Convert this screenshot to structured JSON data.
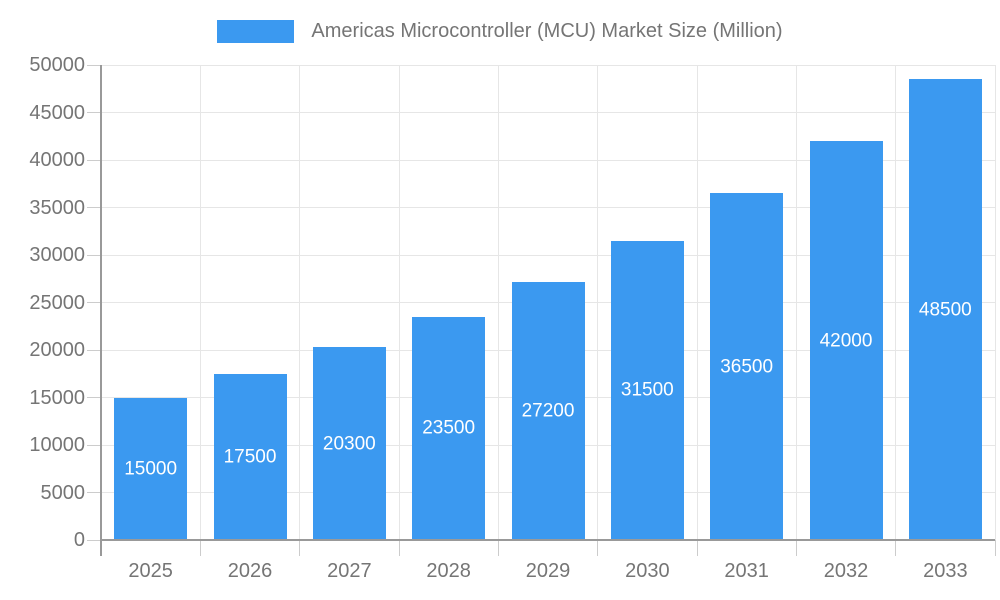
{
  "chart_data": {
    "type": "bar",
    "title": "Americas Microcontroller (MCU) Market Size (Million)",
    "legend_label": "Americas Microcontroller (MCU) Market Size (Million)",
    "legend_position": "top-center",
    "categories": [
      "2025",
      "2026",
      "2027",
      "2028",
      "2029",
      "2030",
      "2031",
      "2032",
      "2033"
    ],
    "values": [
      15000,
      17500,
      20300,
      23500,
      27200,
      31500,
      36500,
      42000,
      48500
    ],
    "value_labels": [
      "15000",
      "17500",
      "20300",
      "23500",
      "27200",
      "31500",
      "36500",
      "42000",
      "48500"
    ],
    "xlabel": "",
    "ylabel": "",
    "ylim": [
      0,
      50000
    ],
    "yticks": [
      0,
      5000,
      10000,
      15000,
      20000,
      25000,
      30000,
      35000,
      40000,
      45000,
      50000
    ],
    "ytick_labels": [
      "0",
      "5000",
      "10000",
      "15000",
      "20000",
      "25000",
      "30000",
      "35000",
      "40000",
      "45000",
      "50000"
    ],
    "grid": true,
    "colors": {
      "bar": "#3B99F0",
      "value_label": "#ffffff",
      "axis_text": "#757575",
      "gridline": "#e6e6e6",
      "axis_line": "#999999",
      "tick": "#cccccc",
      "background": "#ffffff"
    }
  }
}
